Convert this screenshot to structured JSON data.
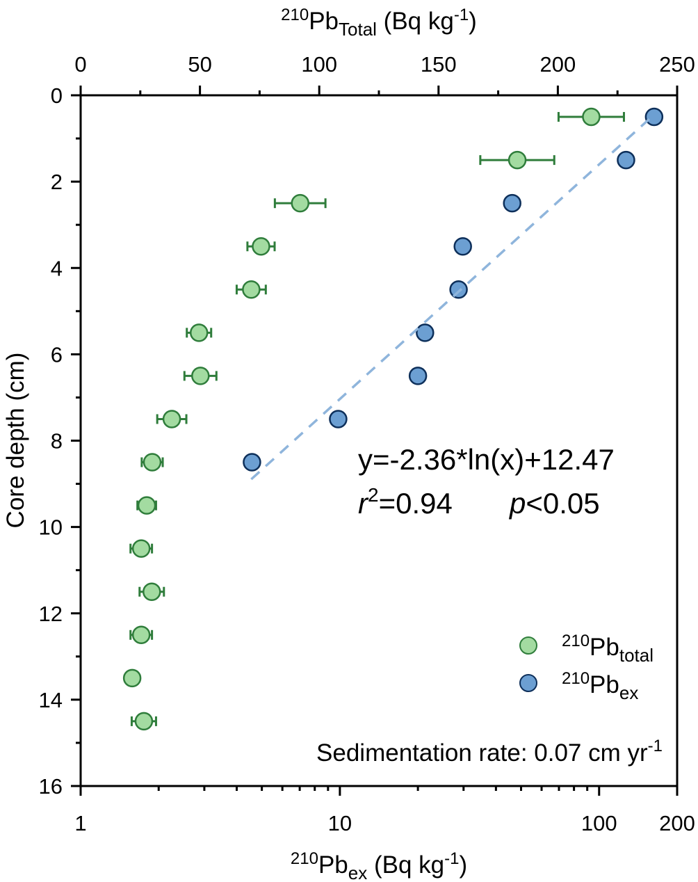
{
  "chart_data": {
    "type": "scatter",
    "title": "",
    "ylabel": "Core depth (cm)",
    "ylim": [
      0,
      16
    ],
    "yticks": [
      0,
      2,
      4,
      6,
      8,
      10,
      12,
      14,
      16
    ],
    "y_reversed": true,
    "top_axis": {
      "label_sup": "210",
      "label_main": "Pb",
      "label_sub": "Total",
      "label_units": " (Bq kg",
      "label_units_sup": "-1",
      "label_close": ")",
      "scale": "linear",
      "xlim": [
        0,
        250
      ],
      "ticks": [
        0,
        50,
        100,
        150,
        200,
        250
      ],
      "tick_labels": [
        "0",
        "50",
        "100",
        "150",
        "200",
        "250"
      ]
    },
    "bottom_axis": {
      "label_sup": "210",
      "label_main": "Pb",
      "label_sub": "ex",
      "label_units": " (Bq kg",
      "label_units_sup": "-1",
      "label_close": ")",
      "scale": "log",
      "xlim": [
        1,
        200
      ],
      "ticks": [
        1,
        10,
        100,
        200
      ],
      "tick_labels": [
        "1",
        "10",
        "100",
        "200"
      ]
    },
    "series": [
      {
        "name": "210Pb total",
        "axis": "top",
        "color": "#a3dba1",
        "edge_color": "#2f7d3b",
        "error_color": "#2f7d3b",
        "points": [
          {
            "depth": 0.5,
            "value": 214,
            "err": 13.7
          },
          {
            "depth": 1.5,
            "value": 183,
            "err": 15.5
          },
          {
            "depth": 2.5,
            "value": 92,
            "err": 10.6
          },
          {
            "depth": 3.5,
            "value": 75.6,
            "err": 5.7
          },
          {
            "depth": 4.5,
            "value": 71.5,
            "err": 6.1
          },
          {
            "depth": 5.5,
            "value": 49.6,
            "err": 5.1
          },
          {
            "depth": 6.5,
            "value": 50.2,
            "err": 6.7
          },
          {
            "depth": 7.5,
            "value": 38.2,
            "err": 6.1
          },
          {
            "depth": 8.5,
            "value": 30.0,
            "err": 4.4
          },
          {
            "depth": 9.5,
            "value": 27.7,
            "err": 3.9
          },
          {
            "depth": 10.5,
            "value": 25.4,
            "err": 4.5
          },
          {
            "depth": 11.5,
            "value": 29.8,
            "err": 5.1
          },
          {
            "depth": 12.5,
            "value": 25.4,
            "err": 4.5
          },
          {
            "depth": 13.5,
            "value": 21.6,
            "err": 2.5
          },
          {
            "depth": 14.5,
            "value": 26.5,
            "err": 5.1
          }
        ]
      },
      {
        "name": "210Pb ex",
        "axis": "bottom",
        "color": "#6c9fd2",
        "edge_color": "#0d2f5a",
        "points": [
          {
            "depth": 0.5,
            "value": 163
          },
          {
            "depth": 1.5,
            "value": 127
          },
          {
            "depth": 2.5,
            "value": 46.2
          },
          {
            "depth": 3.5,
            "value": 29.8
          },
          {
            "depth": 4.5,
            "value": 28.7
          },
          {
            "depth": 5.5,
            "value": 21.3
          },
          {
            "depth": 6.5,
            "value": 20.0
          },
          {
            "depth": 7.5,
            "value": 9.85
          },
          {
            "depth": 8.5,
            "value": 4.58
          }
        ]
      }
    ],
    "fit": {
      "type": "log",
      "slope": -2.36,
      "intercept": 12.47,
      "x_range": [
        4.55,
        163
      ],
      "color": "#8fb5dc",
      "style": "dashed"
    },
    "annotations": {
      "equation": "y=-2.36*ln(x)+12.47",
      "r2_label": "r",
      "r2_sup": "2",
      "r2_value": "=0.94",
      "p_label": "p",
      "p_value": "<0.05",
      "sed_text": "Sedimentation rate: 0.07 cm yr",
      "sed_sup": "-1"
    },
    "legend": {
      "placement": "bottom-right",
      "items": [
        {
          "sup": "210",
          "main": "Pb",
          "sub": "total"
        },
        {
          "sup": "210",
          "main": "Pb",
          "sub": "ex"
        }
      ]
    },
    "grid": false
  }
}
